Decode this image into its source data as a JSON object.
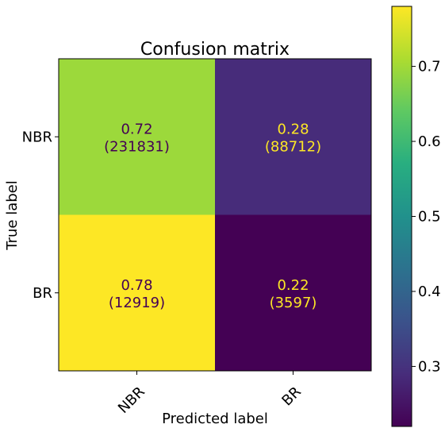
{
  "chart_data": {
    "type": "heatmap",
    "title": "Confusion matrix",
    "xlabel": "Predicted label",
    "ylabel": "True label",
    "x_categories": [
      "NBR",
      "BR"
    ],
    "y_categories": [
      "NBR",
      "BR"
    ],
    "values": [
      [
        0.72,
        0.28
      ],
      [
        0.78,
        0.22
      ]
    ],
    "counts": [
      [
        231831,
        88712
      ],
      [
        12919,
        3597
      ]
    ],
    "cell_labels": [
      [
        "0.72",
        "(231831)",
        "0.28",
        "(88712)"
      ],
      [
        "0.78",
        "(12919)",
        "0.22",
        "(3597)"
      ]
    ],
    "colormap": "viridis",
    "colorbar": {
      "range": [
        0.22,
        0.78
      ],
      "ticks": [
        0.3,
        0.4,
        0.5,
        0.6,
        0.7
      ],
      "tick_labels": [
        "0.3",
        "0.4",
        "0.5",
        "0.6",
        "0.7"
      ]
    },
    "cell_colors": [
      [
        "#9cd93b",
        "#472c7a"
      ],
      [
        "#fde725",
        "#440154"
      ]
    ],
    "text_colors": [
      [
        "#440154",
        "#fde725"
      ],
      [
        "#440154",
        "#fde725"
      ]
    ]
  }
}
